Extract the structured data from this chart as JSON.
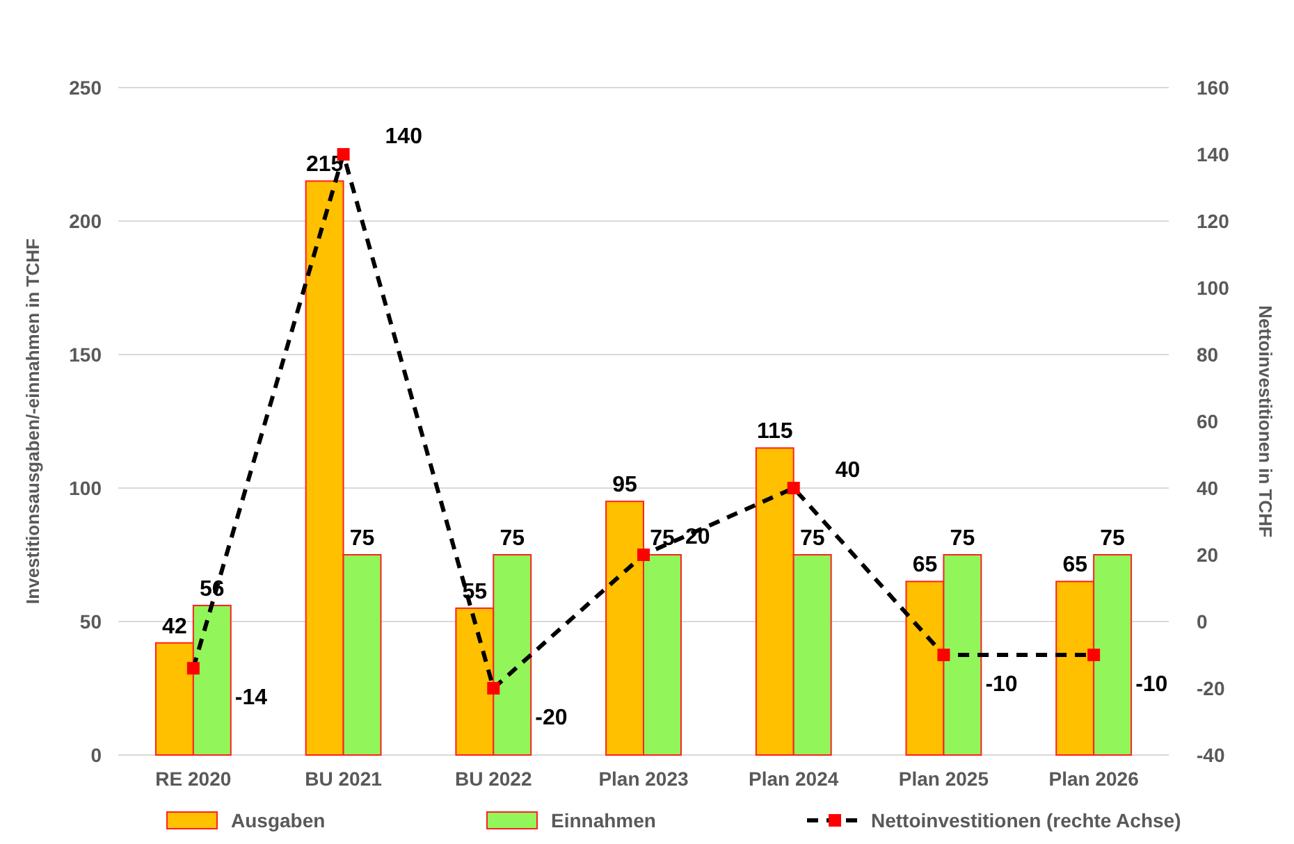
{
  "chart_data": {
    "type": "bar",
    "categories": [
      "RE 2020",
      "BU 2021",
      "BU 2022",
      "Plan 2023",
      "Plan 2024",
      "Plan 2025",
      "Plan 2026"
    ],
    "ylabel": "Investitionsausgaben/-einnahmen in TCHF",
    "y2label": "Nettoinvestitionen in TCHF",
    "series": [
      {
        "name": "Ausgaben",
        "color": "#ffc000",
        "values": [
          42,
          215,
          55,
          95,
          115,
          65,
          65
        ]
      },
      {
        "name": "Einnahmen",
        "color": "#92f55a",
        "values": [
          56,
          75,
          75,
          75,
          75,
          75,
          75
        ]
      },
      {
        "name": "Nettoinvestitionen (rechte Achse)",
        "type": "line",
        "axis": "y2",
        "color": "#000000",
        "marker": "square",
        "line_style": "dashed",
        "values": [
          -14,
          140,
          -20,
          20,
          40,
          -10,
          -10
        ]
      }
    ],
    "ylim": [
      0,
      250
    ],
    "yticks": [
      0,
      50,
      100,
      150,
      200,
      250
    ],
    "y2lim": [
      -40,
      160
    ],
    "y2ticks": [
      -40,
      -20,
      0,
      20,
      40,
      60,
      80,
      100,
      120,
      140,
      160
    ],
    "grid": "y",
    "legend": "bottom",
    "data_labels": true
  }
}
